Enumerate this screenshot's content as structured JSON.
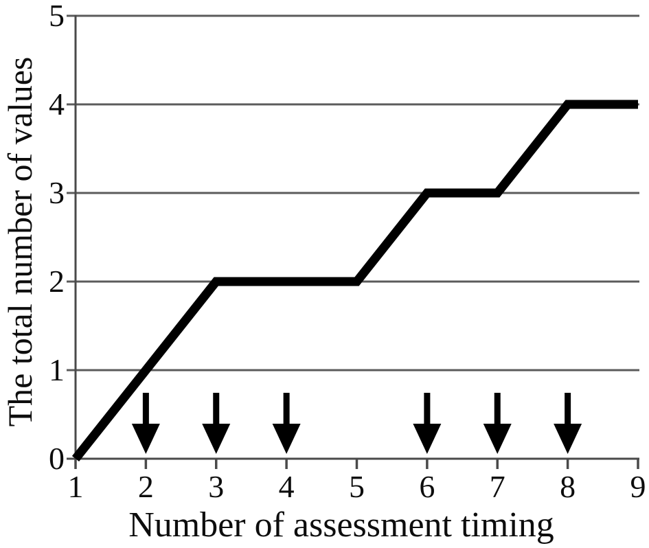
{
  "chart_data": {
    "type": "line",
    "title": "",
    "xlabel": "Number of assessment timing",
    "ylabel": "The total number of values",
    "x": [
      1,
      2,
      3,
      4,
      5,
      6,
      7,
      8,
      9
    ],
    "series": [
      {
        "name": "total number of values",
        "values": [
          0,
          1,
          2,
          2,
          2,
          3,
          3,
          4,
          4
        ],
        "color": "#000000",
        "stroke_width": 13
      }
    ],
    "x_tick_labels": [
      "1",
      "2",
      "3",
      "4",
      "5",
      "6",
      "7",
      "8",
      "9"
    ],
    "y_tick_labels": [
      "0",
      "1",
      "2",
      "3",
      "4",
      "5"
    ],
    "xlim": [
      1,
      9
    ],
    "ylim": [
      0,
      5
    ],
    "grid": "horizontal-only",
    "grid_color": "#5b5b5b",
    "axis_color": "#4a4a4a",
    "text_color": "#0d0d0d",
    "legend": "none",
    "annotations": {
      "down_arrows_at_x": [
        2,
        3,
        4,
        6,
        7,
        8
      ],
      "arrow_color": "#000000"
    }
  }
}
